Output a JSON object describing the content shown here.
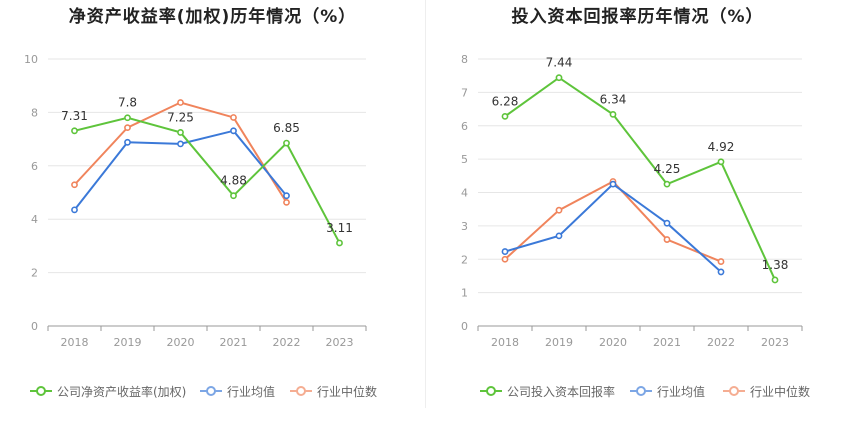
{
  "chart_data": [
    {
      "type": "line",
      "title": "净资产收益率(加权)历年情况（%）",
      "categories": [
        "2018",
        "2019",
        "2020",
        "2021",
        "2022",
        "2023"
      ],
      "ylim": [
        0,
        10
      ],
      "yticks": [
        0,
        2,
        4,
        6,
        8,
        10
      ],
      "grid": true,
      "legend_position": "bottom",
      "series": [
        {
          "name": "公司净资产收益率(加权)",
          "color": "#5ec43b",
          "values": [
            7.31,
            7.8,
            7.25,
            4.88,
            6.85,
            3.11
          ],
          "labels": [
            "7.31",
            "7.8",
            "7.25",
            "4.88",
            "6.85",
            "3.11"
          ]
        },
        {
          "name": "行业均值",
          "color": "#3b79d8",
          "values": [
            4.35,
            6.88,
            6.82,
            7.31,
            4.88,
            null
          ]
        },
        {
          "name": "行业中位数",
          "color": "#f0845c",
          "values": [
            5.29,
            7.43,
            8.37,
            7.81,
            4.63,
            null
          ]
        }
      ]
    },
    {
      "type": "line",
      "title": "投入资本回报率历年情况（%）",
      "categories": [
        "2018",
        "2019",
        "2020",
        "2021",
        "2022",
        "2023"
      ],
      "ylim": [
        0,
        8
      ],
      "yticks": [
        0,
        1,
        2,
        3,
        4,
        5,
        6,
        7,
        8
      ],
      "grid": true,
      "legend_position": "bottom",
      "series": [
        {
          "name": "公司投入资本回报率",
          "color": "#5ec43b",
          "values": [
            6.28,
            7.44,
            6.34,
            4.25,
            4.92,
            1.38
          ],
          "labels": [
            "6.28",
            "7.44",
            "6.34",
            "4.25",
            "4.92",
            "1.38"
          ]
        },
        {
          "name": "行业均值",
          "color": "#3b79d8",
          "values": [
            2.23,
            2.7,
            4.25,
            3.08,
            1.62,
            null
          ]
        },
        {
          "name": "行业中位数",
          "color": "#f0845c",
          "values": [
            2.0,
            3.47,
            4.33,
            2.59,
            1.93,
            null
          ]
        }
      ]
    }
  ]
}
